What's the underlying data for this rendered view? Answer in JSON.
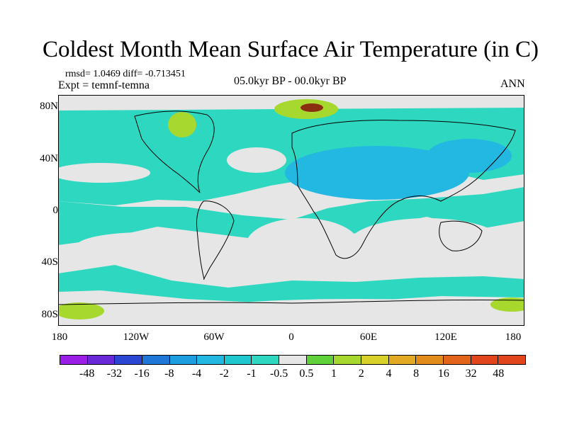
{
  "title": "Coldest Month Mean Surface Air Temperature (in C)",
  "stats": "rmsd= 1.0469 diff= -0.713451",
  "experiment": "Expt = temnf-temna",
  "period": "05.0kyr BP - 00.0kyr BP",
  "season": "ANN",
  "lat_labels": [
    "80N",
    "40N",
    "0",
    "40S",
    "80S"
  ],
  "lon_labels": [
    "180",
    "120W",
    "60W",
    "0",
    "60E",
    "120E",
    "180"
  ],
  "colorbar": {
    "labels": [
      "-48",
      "-32",
      "-16",
      "-8",
      "-4",
      "-2",
      "-1",
      "-0.5",
      "0.5",
      "1",
      "2",
      "4",
      "8",
      "16",
      "32",
      "48"
    ],
    "colors": [
      "#9a1ee6",
      "#6a29d6",
      "#2c46d4",
      "#1f78d8",
      "#1d9ee0",
      "#22b8e2",
      "#1ec8cf",
      "#2ed8c0",
      "#e6e6e6",
      "#5fd23a",
      "#a6d82e",
      "#d8d12a",
      "#e2aa22",
      "#e08d1c",
      "#e2651a",
      "#e2441c",
      "#e2441c"
    ]
  },
  "map_colors": {
    "neutral": "#e6e6e6",
    "teal": "#2ed8c0",
    "cyan": "#22b8e2",
    "blue": "#1d9ee0",
    "green": "#5fd23a",
    "yellowgreen": "#a6d82e",
    "orange": "#e2aa22",
    "darkred": "#8a2f10"
  }
}
